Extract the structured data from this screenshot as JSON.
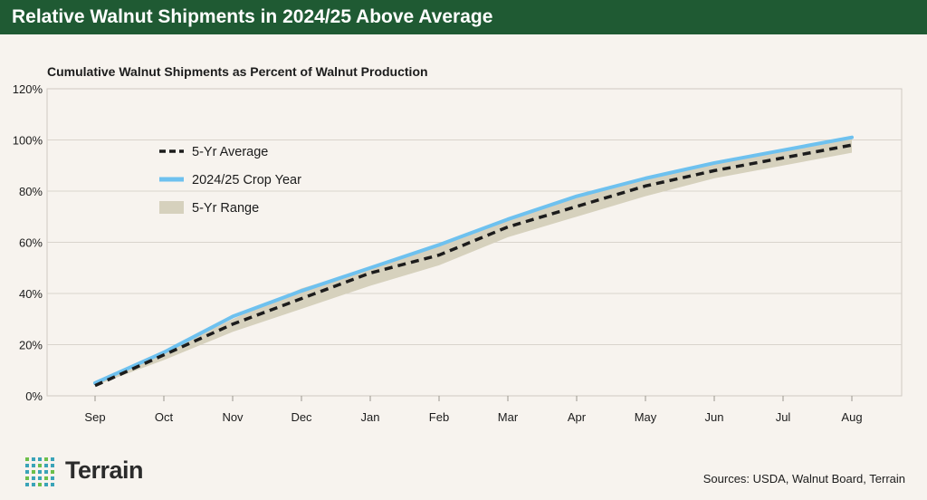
{
  "banner": {
    "title": "Relative Walnut Shipments in 2024/25 Above Average"
  },
  "brand": {
    "name": "Terrain",
    "color_dark": "#1f5a33",
    "color_dots": "#3aa3b8",
    "color_dots_alt": "#6dbf4b"
  },
  "footer": {
    "sources": "Sources: USDA, Walnut Board, Terrain"
  },
  "chart_data": {
    "type": "line",
    "title": "Cumulative Walnut Shipments as Percent of Walnut Production",
    "xlabel": "",
    "ylabel": "",
    "ylim": [
      0,
      120
    ],
    "yticks": [
      0,
      20,
      40,
      60,
      80,
      100,
      120
    ],
    "ytick_labels": [
      "0%",
      "20%",
      "40%",
      "60%",
      "80%",
      "100%",
      "120%"
    ],
    "categories": [
      "Sep",
      "Oct",
      "Nov",
      "Dec",
      "Jan",
      "Feb",
      "Mar",
      "Apr",
      "May",
      "Jun",
      "Jul",
      "Aug"
    ],
    "grid": true,
    "legend_position": "upper-left",
    "legend": [
      "5-Yr Average",
      "2024/25 Crop Year",
      "5-Yr Range"
    ],
    "series": [
      {
        "name": "5-Yr Average",
        "style": "dashed",
        "color": "#1c1c1c",
        "values": [
          4,
          16,
          28,
          38,
          48,
          55,
          66,
          74,
          82,
          88,
          93,
          98
        ]
      },
      {
        "name": "2024/25 Crop Year",
        "style": "solid",
        "color": "#6ec1ef",
        "values": [
          5,
          17,
          31,
          41,
          50,
          59,
          69,
          78,
          85,
          91,
          96,
          101
        ]
      }
    ],
    "range": {
      "name": "5-Yr Range",
      "color": "#d6d1bd",
      "low": [
        4,
        14,
        25,
        34,
        43,
        51,
        62,
        70,
        78,
        85,
        90,
        95
      ],
      "high": [
        5,
        17,
        30,
        42,
        50,
        59,
        69,
        78,
        85,
        91,
        96,
        101
      ]
    }
  }
}
